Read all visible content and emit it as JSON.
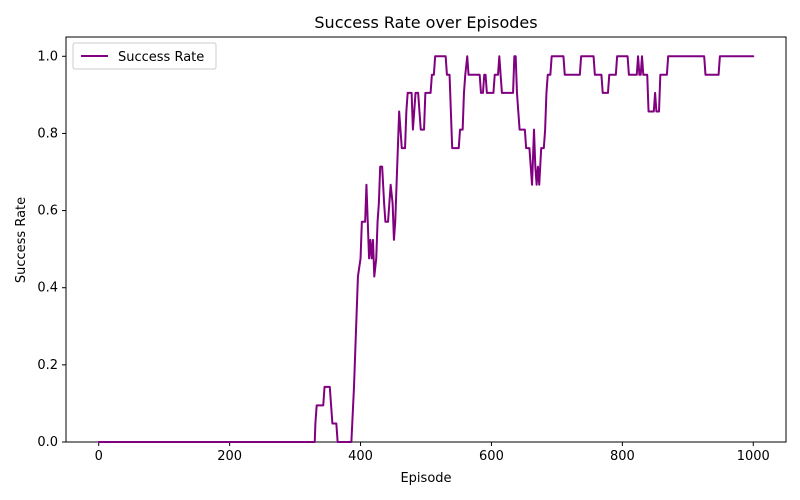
{
  "chart_data": {
    "type": "line",
    "title": "Success Rate over Episodes",
    "xlabel": "Episode",
    "ylabel": "Success Rate",
    "xlim": [
      -50,
      1050
    ],
    "ylim": [
      0,
      1.05
    ],
    "xticks": [
      0,
      200,
      400,
      600,
      800,
      1000
    ],
    "yticks": [
      0.0,
      0.2,
      0.4,
      0.6,
      0.8,
      1.0
    ],
    "xtick_labels": [
      "0",
      "200",
      "400",
      "600",
      "800",
      "1000"
    ],
    "ytick_labels": [
      "0.0",
      "0.2",
      "0.4",
      "0.6",
      "0.8",
      "1.0"
    ],
    "grid": false,
    "legend": {
      "placement": "top-left",
      "entries": [
        "Success Rate"
      ]
    },
    "series": [
      {
        "name": "Success Rate",
        "color": "#800080",
        "points": [
          [
            0,
            0.0
          ],
          [
            330,
            0.0
          ],
          [
            331,
            0.048
          ],
          [
            333,
            0.095
          ],
          [
            343,
            0.095
          ],
          [
            345,
            0.143
          ],
          [
            353,
            0.143
          ],
          [
            355,
            0.095
          ],
          [
            357,
            0.048
          ],
          [
            363,
            0.048
          ],
          [
            365,
            0.0
          ],
          [
            386,
            0.0
          ],
          [
            390,
            0.143
          ],
          [
            393,
            0.286
          ],
          [
            396,
            0.429
          ],
          [
            400,
            0.476
          ],
          [
            402,
            0.571
          ],
          [
            407,
            0.571
          ],
          [
            409,
            0.667
          ],
          [
            411,
            0.571
          ],
          [
            413,
            0.476
          ],
          [
            415,
            0.524
          ],
          [
            417,
            0.476
          ],
          [
            419,
            0.524
          ],
          [
            421,
            0.429
          ],
          [
            424,
            0.476
          ],
          [
            426,
            0.571
          ],
          [
            428,
            0.619
          ],
          [
            430,
            0.714
          ],
          [
            433,
            0.714
          ],
          [
            436,
            0.619
          ],
          [
            438,
            0.571
          ],
          [
            442,
            0.571
          ],
          [
            444,
            0.619
          ],
          [
            446,
            0.667
          ],
          [
            449,
            0.619
          ],
          [
            451,
            0.524
          ],
          [
            453,
            0.571
          ],
          [
            455,
            0.667
          ],
          [
            457,
            0.762
          ],
          [
            459,
            0.857
          ],
          [
            461,
            0.81
          ],
          [
            463,
            0.762
          ],
          [
            468,
            0.762
          ],
          [
            470,
            0.857
          ],
          [
            472,
            0.905
          ],
          [
            478,
            0.905
          ],
          [
            480,
            0.81
          ],
          [
            482,
            0.857
          ],
          [
            484,
            0.905
          ],
          [
            488,
            0.905
          ],
          [
            490,
            0.857
          ],
          [
            492,
            0.81
          ],
          [
            497,
            0.81
          ],
          [
            499,
            0.905
          ],
          [
            507,
            0.905
          ],
          [
            509,
            0.952
          ],
          [
            512,
            0.952
          ],
          [
            514,
            1.0
          ],
          [
            530,
            1.0
          ],
          [
            532,
            0.952
          ],
          [
            536,
            0.952
          ],
          [
            538,
            0.857
          ],
          [
            540,
            0.762
          ],
          [
            550,
            0.762
          ],
          [
            552,
            0.81
          ],
          [
            556,
            0.81
          ],
          [
            558,
            0.905
          ],
          [
            560,
            0.952
          ],
          [
            563,
            1.0
          ],
          [
            565,
            0.952
          ],
          [
            582,
            0.952
          ],
          [
            584,
            0.905
          ],
          [
            587,
            0.905
          ],
          [
            589,
            0.952
          ],
          [
            591,
            0.952
          ],
          [
            593,
            0.905
          ],
          [
            603,
            0.905
          ],
          [
            605,
            0.952
          ],
          [
            610,
            0.952
          ],
          [
            612,
            1.0
          ],
          [
            614,
            0.952
          ],
          [
            616,
            0.905
          ],
          [
            633,
            0.905
          ],
          [
            635,
            1.0
          ],
          [
            637,
            1.0
          ],
          [
            639,
            0.905
          ],
          [
            641,
            0.857
          ],
          [
            643,
            0.81
          ],
          [
            651,
            0.81
          ],
          [
            653,
            0.762
          ],
          [
            658,
            0.762
          ],
          [
            660,
            0.714
          ],
          [
            662,
            0.667
          ],
          [
            665,
            0.81
          ],
          [
            667,
            0.714
          ],
          [
            669,
            0.667
          ],
          [
            671,
            0.714
          ],
          [
            673,
            0.667
          ],
          [
            676,
            0.762
          ],
          [
            680,
            0.762
          ],
          [
            682,
            0.81
          ],
          [
            684,
            0.905
          ],
          [
            686,
            0.952
          ],
          [
            690,
            0.952
          ],
          [
            692,
            1.0
          ],
          [
            710,
            1.0
          ],
          [
            712,
            0.952
          ],
          [
            735,
            0.952
          ],
          [
            737,
            1.0
          ],
          [
            756,
            1.0
          ],
          [
            758,
            0.952
          ],
          [
            768,
            0.952
          ],
          [
            770,
            0.905
          ],
          [
            778,
            0.905
          ],
          [
            780,
            0.952
          ],
          [
            790,
            0.952
          ],
          [
            792,
            1.0
          ],
          [
            808,
            1.0
          ],
          [
            810,
            0.952
          ],
          [
            822,
            0.952
          ],
          [
            824,
            1.0
          ],
          [
            826,
            0.952
          ],
          [
            828,
            0.952
          ],
          [
            830,
            1.0
          ],
          [
            832,
            0.952
          ],
          [
            838,
            0.952
          ],
          [
            840,
            0.857
          ],
          [
            848,
            0.857
          ],
          [
            850,
            0.905
          ],
          [
            852,
            0.857
          ],
          [
            856,
            0.857
          ],
          [
            858,
            0.952
          ],
          [
            868,
            0.952
          ],
          [
            870,
            1.0
          ],
          [
            925,
            1.0
          ],
          [
            927,
            0.952
          ],
          [
            947,
            0.952
          ],
          [
            949,
            1.0
          ],
          [
            1000,
            1.0
          ]
        ]
      }
    ]
  }
}
